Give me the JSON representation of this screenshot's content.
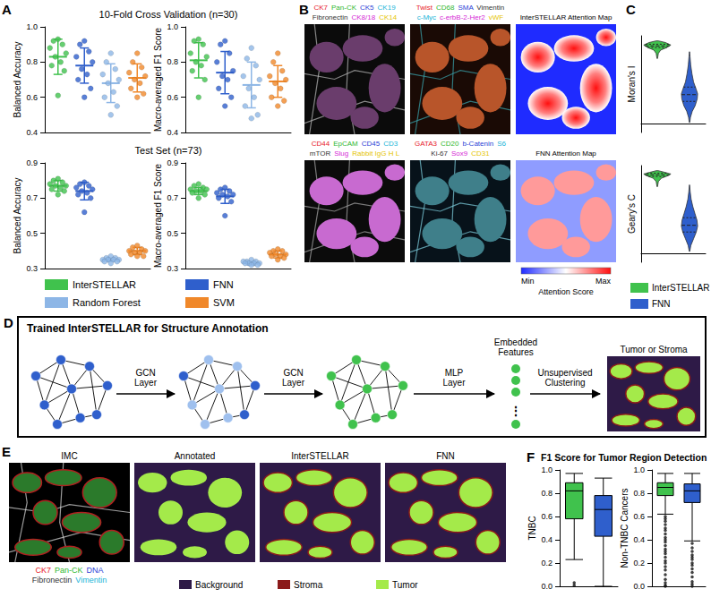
{
  "chart_data": [
    {
      "type": "scatter",
      "title": "10-Fold Cross Validation (n=30)",
      "ylabel": "Balanced Accuracy",
      "ylim": [
        0.4,
        1.0
      ],
      "yticks": [
        0.4,
        0.6,
        0.8,
        {
          "value": 1.0,
          "label": "1.0"
        }
      ],
      "tick_labels": "y",
      "series": [
        {
          "name": "InterSTELLAR",
          "color": "#40c24d",
          "values": [
            0.93,
            0.92,
            0.9,
            0.88,
            0.85,
            0.83,
            0.8,
            0.78,
            0.75,
            0.61
          ],
          "mean": 0.83,
          "error": 0.1
        },
        {
          "name": "FNN",
          "color": "#2f5fcc",
          "values": [
            0.92,
            0.9,
            0.86,
            0.83,
            0.8,
            0.76,
            0.73,
            0.7,
            0.65,
            0.6
          ],
          "mean": 0.78,
          "error": 0.1
        },
        {
          "name": "Random Forest",
          "color": "#8db6e6",
          "values": [
            0.85,
            0.8,
            0.76,
            0.73,
            0.7,
            0.68,
            0.63,
            0.6,
            0.55,
            0.5
          ],
          "mean": 0.68,
          "error": 0.11
        },
        {
          "name": "SVM",
          "color": "#f0882a",
          "values": [
            0.85,
            0.8,
            0.77,
            0.74,
            0.72,
            0.7,
            0.68,
            0.65,
            0.62,
            0.6
          ],
          "mean": 0.71,
          "error": 0.08
        }
      ]
    },
    {
      "type": "scatter",
      "ylabel": "Macro-averaged F1 Score",
      "ylim": [
        0.4,
        1.0
      ],
      "yticks": [
        0.4,
        0.6,
        0.8,
        {
          "value": 1.0,
          "label": "1.0"
        }
      ],
      "tick_labels": "y",
      "series": [
        {
          "name": "InterSTELLAR",
          "color": "#40c24d",
          "values": [
            0.93,
            0.92,
            0.9,
            0.85,
            0.83,
            0.8,
            0.78,
            0.75,
            0.7,
            0.6
          ],
          "mean": 0.81,
          "error": 0.1
        },
        {
          "name": "FNN",
          "color": "#2f5fcc",
          "values": [
            0.92,
            0.9,
            0.85,
            0.8,
            0.75,
            0.72,
            0.7,
            0.65,
            0.6,
            0.55
          ],
          "mean": 0.74,
          "error": 0.12
        },
        {
          "name": "Random Forest",
          "color": "#8db6e6",
          "values": [
            0.88,
            0.82,
            0.78,
            0.72,
            0.7,
            0.65,
            0.6,
            0.55,
            0.5,
            0.48
          ],
          "mean": 0.67,
          "error": 0.13
        },
        {
          "name": "SVM",
          "color": "#f0882a",
          "values": [
            0.85,
            0.8,
            0.75,
            0.72,
            0.7,
            0.68,
            0.65,
            0.6,
            0.58,
            0.55
          ],
          "mean": 0.69,
          "error": 0.09
        }
      ]
    },
    {
      "type": "scatter",
      "title": "Test Set (n=73)",
      "ylabel": "Balanced Accuracy",
      "ylim": [
        0.3,
        0.9
      ],
      "yticks": [
        0.3,
        0.5,
        0.7,
        0.9
      ],
      "tick_labels": "y",
      "series": [
        {
          "name": "InterSTELLAR",
          "color": "#40c24d",
          "values": [
            0.81,
            0.8,
            0.79,
            0.78,
            0.77,
            0.77,
            0.76,
            0.75,
            0.74,
            0.72
          ],
          "mean": 0.77,
          "error": 0.03
        },
        {
          "name": "FNN",
          "color": "#2f5fcc",
          "values": [
            0.79,
            0.78,
            0.77,
            0.76,
            0.75,
            0.74,
            0.73,
            0.72,
            0.7,
            0.62
          ],
          "mean": 0.74,
          "error": 0.05
        },
        {
          "name": "Random Forest",
          "color": "#8db6e6",
          "values": [
            0.37,
            0.36,
            0.36,
            0.35,
            0.35,
            0.35,
            0.35,
            0.34,
            0.34,
            0.33
          ],
          "mean": 0.35,
          "error": 0.01
        },
        {
          "name": "SVM",
          "color": "#f0882a",
          "values": [
            0.43,
            0.42,
            0.41,
            0.4,
            0.4,
            0.39,
            0.39,
            0.38,
            0.37,
            0.37
          ],
          "mean": 0.4,
          "error": 0.02
        }
      ]
    },
    {
      "type": "scatter",
      "ylabel": "Macro-averaged F1 Score",
      "ylim": [
        0.3,
        0.9
      ],
      "yticks": [
        0.3,
        0.5,
        0.7,
        0.9
      ],
      "tick_labels": "y",
      "series": [
        {
          "name": "InterSTELLAR",
          "color": "#40c24d",
          "values": [
            0.78,
            0.77,
            0.76,
            0.75,
            0.75,
            0.74,
            0.74,
            0.73,
            0.72,
            0.7
          ],
          "mean": 0.74,
          "error": 0.02
        },
        {
          "name": "FNN",
          "color": "#2f5fcc",
          "values": [
            0.76,
            0.75,
            0.74,
            0.73,
            0.72,
            0.72,
            0.71,
            0.7,
            0.68,
            0.6
          ],
          "mean": 0.71,
          "error": 0.04
        },
        {
          "name": "Random Forest",
          "color": "#8db6e6",
          "values": [
            0.35,
            0.34,
            0.34,
            0.34,
            0.33,
            0.33,
            0.33,
            0.33,
            0.32,
            0.32
          ],
          "mean": 0.33,
          "error": 0.01
        },
        {
          "name": "SVM",
          "color": "#f0882a",
          "values": [
            0.41,
            0.4,
            0.4,
            0.39,
            0.38,
            0.38,
            0.37,
            0.37,
            0.36,
            0.35
          ],
          "mean": 0.38,
          "error": 0.02
        }
      ]
    },
    {
      "type": "violin",
      "ylabel": "Moran's I",
      "ylim": [
        -0.1,
        1.05
      ],
      "tick_labels": false,
      "hline": 0,
      "series": [
        {
          "name": "InterSTELLAR",
          "color": "#40c24d",
          "y": [
            0.78,
            0.84,
            0.88,
            0.91,
            0.94,
            0.97,
            0.99
          ],
          "density": [
            0.02,
            0.08,
            0.25,
            0.7,
            1.0,
            0.6,
            0.08
          ],
          "quartiles": [
            0.91,
            0.93,
            0.95
          ]
        },
        {
          "name": "FNN",
          "color": "#2f5fcc",
          "y": [
            0.02,
            0.08,
            0.15,
            0.22,
            0.3,
            0.36,
            0.42,
            0.5,
            0.6,
            0.7,
            0.8,
            0.86
          ],
          "density": [
            0.02,
            0.07,
            0.2,
            0.42,
            0.57,
            0.6,
            0.48,
            0.3,
            0.18,
            0.09,
            0.04,
            0.01
          ],
          "quartiles": [
            0.27,
            0.35,
            0.44
          ]
        }
      ]
    },
    {
      "type": "violin",
      "ylabel": "Geary's C",
      "ylim": [
        -0.1,
        1.05
      ],
      "tick_labels": false,
      "hline": 0,
      "series": [
        {
          "name": "InterSTELLAR",
          "color": "#40c24d",
          "y": [
            0.8,
            0.86,
            0.9,
            0.93,
            0.95,
            0.97,
            0.99
          ],
          "density": [
            0.02,
            0.08,
            0.3,
            0.8,
            1.0,
            0.55,
            0.06
          ],
          "quartiles": [
            0.92,
            0.94,
            0.96
          ]
        },
        {
          "name": "FNN",
          "color": "#2f5fcc",
          "y": [
            0.03,
            0.1,
            0.18,
            0.26,
            0.33,
            0.4,
            0.48,
            0.56,
            0.65,
            0.74,
            0.82
          ],
          "density": [
            0.02,
            0.1,
            0.3,
            0.5,
            0.6,
            0.55,
            0.4,
            0.25,
            0.12,
            0.05,
            0.01
          ],
          "quartiles": [
            0.26,
            0.34,
            0.43
          ]
        }
      ]
    },
    {
      "type": "box",
      "title": "F1 Score for Tumor Region Detection",
      "ylabel": "TNBC",
      "ylim": [
        0,
        1
      ],
      "yticks": [
        {
          "value": 0,
          "label": "0.0"
        },
        0.2,
        0.4,
        0.6,
        0.8,
        {
          "value": 1,
          "label": "1.0"
        }
      ],
      "tick_labels": "y",
      "series": [
        {
          "color": "#40c24d",
          "box": [
            0.23,
            0.58,
            0.82,
            0.89,
            0.97
          ],
          "outliers": [
            0.01,
            0.03
          ]
        },
        {
          "color": "#2f5fcc",
          "box": [
            0,
            0.43,
            0.66,
            0.78,
            0.93
          ],
          "outliers": []
        }
      ]
    },
    {
      "type": "box",
      "ylabel": "Non-TNBC Cancers",
      "ylim": [
        0,
        1
      ],
      "yticks": [
        {
          "value": 0,
          "label": "0.0"
        },
        0.2,
        0.4,
        0.6,
        0.8,
        {
          "value": 1,
          "label": "1.0"
        }
      ],
      "tick_labels": "y",
      "series": [
        {
          "color": "#40c24d",
          "box": [
            0.62,
            0.78,
            0.85,
            0.89,
            0.97
          ],
          "outliers": [
            0.6,
            0.58,
            0.56,
            0.53,
            0.5,
            0.48,
            0.45,
            0.42,
            0.4,
            0.38,
            0.35,
            0.32,
            0.3,
            0.28,
            0.25,
            0.22,
            0.2,
            0.17,
            0.14,
            0.1,
            0.06,
            0.03,
            0.01,
            0.0
          ]
        },
        {
          "color": "#2f5fcc",
          "box": [
            0.39,
            0.72,
            0.82,
            0.88,
            0.97
          ],
          "outliers": [
            0.37,
            0.33,
            0.3,
            0.27,
            0.25,
            0.23,
            0.2,
            0.18,
            0.15,
            0.12,
            0.08,
            0.04,
            0.02,
            0.0
          ]
        }
      ]
    }
  ],
  "panel_labels": [
    "A",
    "B",
    "C",
    "D",
    "E",
    "F"
  ],
  "panel_b": {
    "images": [
      {
        "markers": [
          [
            {
              "text": "CK7",
              "color": "#e8202a"
            },
            {
              "text": "Pan-CK",
              "color": "#2fb82f"
            },
            {
              "text": "CK5",
              "color": "#2b3fd6"
            },
            {
              "text": "CK19",
              "color": "#21b5d8"
            }
          ],
          [
            {
              "text": "Fibronectin",
              "color": "#333333"
            },
            {
              "text": "CK8/18",
              "color": "#d62ad6"
            },
            {
              "text": "CK14",
              "color": "#e5c400"
            }
          ]
        ]
      },
      {
        "markers": [
          [
            {
              "text": "Twist",
              "color": "#e8202a"
            },
            {
              "text": "CD68",
              "color": "#2fb82f"
            },
            {
              "text": "SMA",
              "color": "#2b3fd6"
            },
            {
              "text": "Vimentin",
              "color": "#333333"
            }
          ],
          [
            {
              "text": "c-Myc",
              "color": "#21b5d8"
            },
            {
              "text": "c-erbB-2-Her2",
              "color": "#d62ad6"
            },
            {
              "text": "vWF",
              "color": "#e5c400"
            }
          ]
        ]
      },
      {
        "title": "InterSTELLAR Attention Map"
      },
      {
        "markers": [
          [
            {
              "text": "CD44",
              "color": "#e8202a"
            },
            {
              "text": "EpCAM",
              "color": "#2fb82f"
            },
            {
              "text": "CD45",
              "color": "#2b3fd6"
            },
            {
              "text": "CD3",
              "color": "#21b5d8"
            }
          ],
          [
            {
              "text": "mTOR",
              "color": "#333333"
            },
            {
              "text": "Slug",
              "color": "#d62ad6"
            },
            {
              "text": "Rabbit IgG H L",
              "color": "#e5c400"
            }
          ]
        ]
      },
      {
        "markers": [
          [
            {
              "text": "GATA3",
              "color": "#e8202a"
            },
            {
              "text": "CD20",
              "color": "#2fb82f"
            },
            {
              "text": "b-Catenin",
              "color": "#2b3fd6"
            },
            {
              "text": "S6",
              "color": "#21b5d8"
            }
          ],
          [
            {
              "text": "Ki-67",
              "color": "#333333"
            },
            {
              "text": "Sox9",
              "color": "#d62ad6"
            },
            {
              "text": "CD31",
              "color": "#e5c400"
            }
          ]
        ]
      },
      {
        "title": "FNN Attention Map"
      }
    ],
    "colorbar": {
      "min": "Min",
      "max": "Max",
      "title": "Attention Score"
    }
  },
  "panel_d": {
    "title": "Trained InterSTELLAR for Structure Annotation",
    "steps": [
      [
        "GCN",
        "Layer"
      ],
      [
        "GCN",
        "Layer"
      ],
      [
        "MLP",
        "Layer"
      ]
    ],
    "features": [
      "Embedded",
      "Features"
    ],
    "ellipsis": "⋮",
    "clustering": [
      "Unsupervised",
      "Clustering"
    ],
    "output": "Tumor or Stroma"
  },
  "panel_e": {
    "images": [
      "IMC",
      "Annotated",
      "InterSTELLAR",
      "FNN"
    ],
    "markers": [
      [
        {
          "text": "CK7",
          "color": "#e8202a"
        },
        {
          "text": "Pan-CK",
          "color": "#2fb82f"
        },
        {
          "text": "DNA",
          "color": "#2b3fd6"
        }
      ],
      [
        {
          "text": "Fibronectin",
          "color": "#333333"
        },
        {
          "text": "Vimentin",
          "color": "#21b5d8"
        }
      ]
    ],
    "classes": [
      {
        "name": "Background",
        "color": "#2e1a47"
      },
      {
        "name": "Stroma",
        "color": "#8b1a1a"
      },
      {
        "name": "Tumor",
        "color": "#a4ea4a"
      }
    ]
  }
}
